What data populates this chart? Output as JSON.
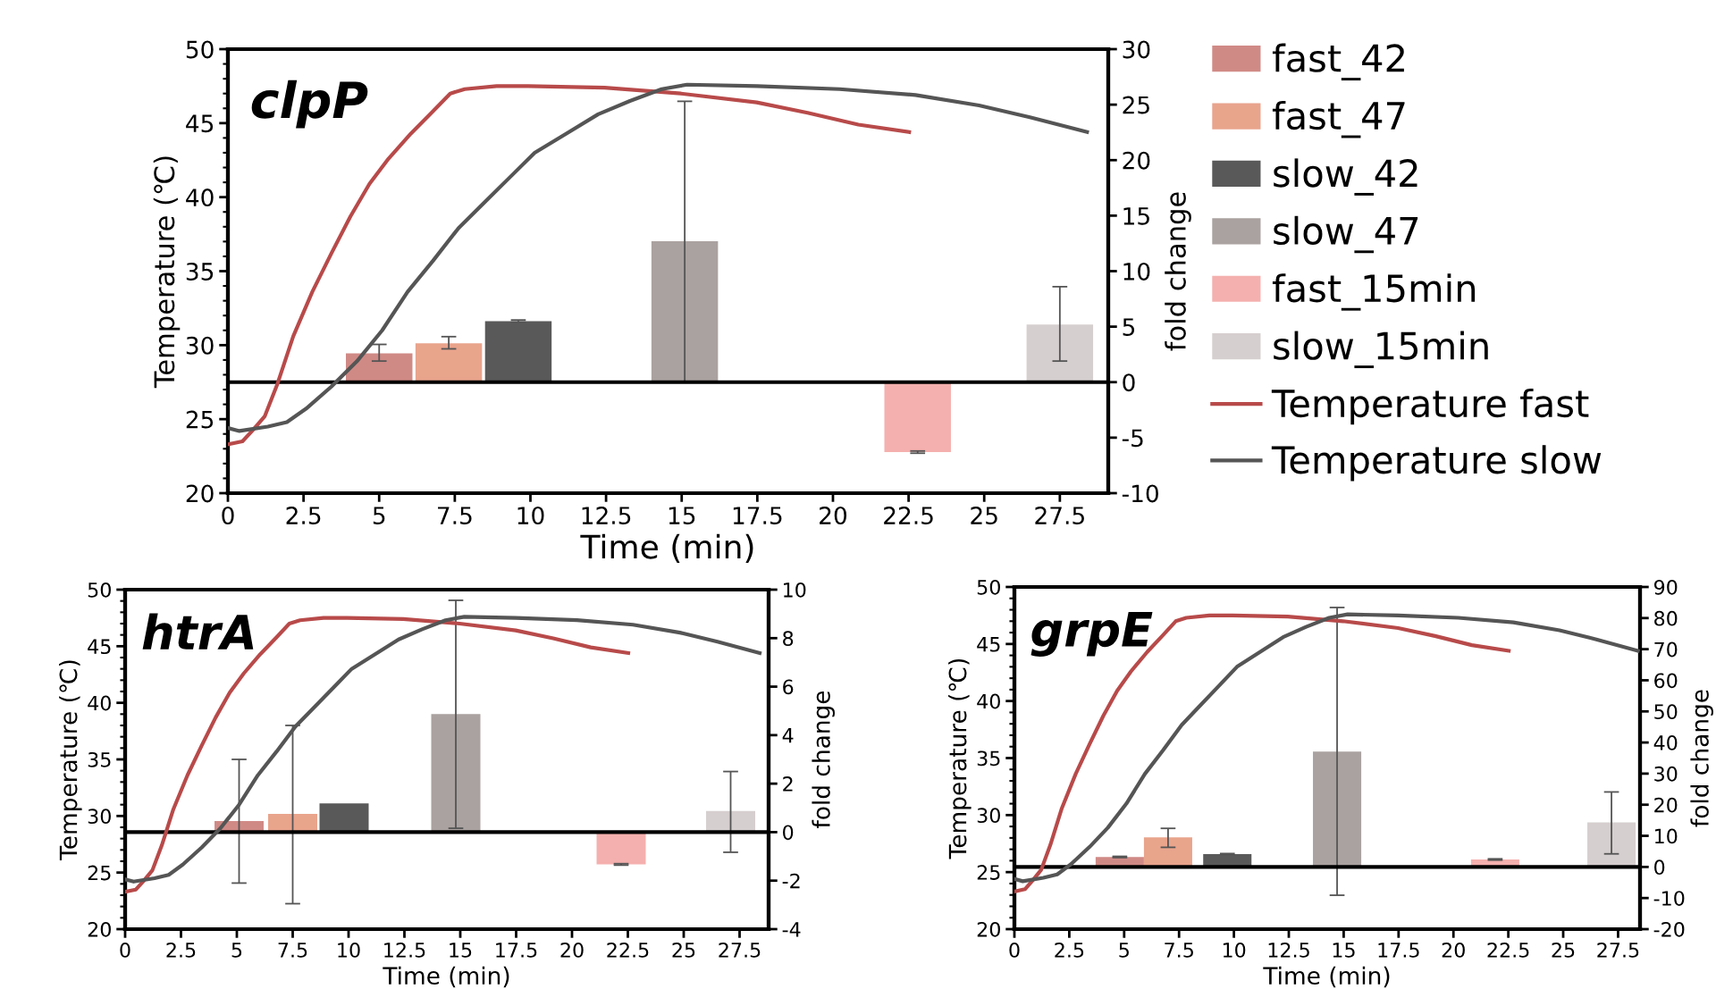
{
  "chart_data": [
    {
      "type": "line",
      "title": "clpP",
      "xlabel": "Time (min)",
      "ylabel": "Temperature (℃)",
      "y2label": "fold change",
      "xlim": [
        0,
        29.1
      ],
      "xticks": [
        0,
        2.5,
        5,
        7.5,
        10,
        12.5,
        15,
        17.5,
        20,
        22.5,
        25,
        27.5
      ],
      "ylim": [
        20,
        50
      ],
      "yticks": [
        20,
        25,
        30,
        35,
        40,
        45,
        50
      ],
      "y2lim": [
        -10,
        30
      ],
      "y2ticks": [
        -10,
        -5,
        0,
        5,
        10,
        15,
        20,
        25,
        30
      ],
      "legend": "right",
      "grid": false,
      "marker": "none",
      "line_style": "solid",
      "ref_lines": [
        {
          "axis": "y2",
          "value": 0,
          "color": "#000000"
        }
      ],
      "series": [
        {
          "type": "bar",
          "axis": "y2",
          "name": "fast_42",
          "color": "#d08a86",
          "x": [
            5.0
          ],
          "values": [
            2.6
          ],
          "errors": [
            [
              1.9,
              3.4
            ]
          ]
        },
        {
          "type": "bar",
          "axis": "y2",
          "name": "fast_47",
          "color": "#e9a48c",
          "x": [
            7.3
          ],
          "values": [
            3.5
          ],
          "errors": [
            [
              3.0,
              4.1
            ]
          ]
        },
        {
          "type": "bar",
          "axis": "y2",
          "name": "slow_42",
          "color": "#595959",
          "x": [
            9.6
          ],
          "values": [
            5.5
          ],
          "errors": [
            [
              5.4,
              5.6
            ]
          ]
        },
        {
          "type": "bar",
          "axis": "y2",
          "name": "slow_47",
          "color": "#aaa2a0",
          "x": [
            15.1
          ],
          "values": [
            12.7
          ],
          "errors": [
            [
              0.0,
              25.3
            ]
          ]
        },
        {
          "type": "bar",
          "axis": "y2",
          "name": "fast_15min",
          "color": "#f4b0ae",
          "x": [
            22.8
          ],
          "values": [
            -6.3
          ],
          "errors": [
            [
              -6.4,
              -6.2
            ]
          ]
        },
        {
          "type": "bar",
          "axis": "y2",
          "name": "slow_15min",
          "color": "#d6cfcf",
          "x": [
            27.5
          ],
          "values": [
            5.2
          ],
          "errors": [
            [
              1.9,
              8.6
            ]
          ]
        },
        {
          "name": "Temperature fast",
          "color": "#b84a4a",
          "x": [
            0,
            0.48,
            0.8,
            1.22,
            1.64,
            2.16,
            2.79,
            3.42,
            4.05,
            4.68,
            5.31,
            6.05,
            6.78,
            7.35,
            7.83,
            8.88,
            9.93,
            12.45,
            14.97,
            17.48,
            19.16,
            20.84,
            22.52
          ],
          "values": [
            23.3,
            23.5,
            24.2,
            25.2,
            27.4,
            30.6,
            33.6,
            36.2,
            38.7,
            40.9,
            42.6,
            44.3,
            45.8,
            47.0,
            47.3,
            47.5,
            47.5,
            47.4,
            47.0,
            46.4,
            45.7,
            44.9,
            44.4
          ]
        },
        {
          "name": "Temperature slow",
          "color": "#555555",
          "x": [
            0,
            0.38,
            1.32,
            1.95,
            2.58,
            3.42,
            4.26,
            5.1,
            5.94,
            6.78,
            7.62,
            8.46,
            9.3,
            10.14,
            11.19,
            12.24,
            13.29,
            14.34,
            15.18,
            17.49,
            20.22,
            22.73,
            24.83,
            26.51,
            28.4
          ],
          "values": [
            24.4,
            24.2,
            24.5,
            24.8,
            25.7,
            27.2,
            28.9,
            31.0,
            33.6,
            35.7,
            37.9,
            39.6,
            41.3,
            43.0,
            44.3,
            45.6,
            46.5,
            47.3,
            47.6,
            47.5,
            47.3,
            46.9,
            46.2,
            45.4,
            44.4
          ]
        }
      ]
    },
    {
      "type": "line",
      "title": "htrA",
      "xlabel": "Time (min)",
      "ylabel": "Temperature (℃)",
      "y2label": "fold change",
      "xlim": [
        0,
        28.8
      ],
      "xticks": [
        0,
        2.5,
        5,
        7.5,
        10,
        12.5,
        15,
        17.5,
        20,
        22.5,
        25,
        27.5
      ],
      "ylim": [
        20,
        50
      ],
      "yticks": [
        20,
        25,
        30,
        35,
        40,
        45,
        50
      ],
      "y2lim": [
        -4,
        10
      ],
      "y2ticks": [
        -4,
        -2,
        0,
        2,
        4,
        6,
        8,
        10
      ],
      "legend": false,
      "grid": false,
      "marker": "none",
      "line_style": "solid",
      "ref_lines": [
        {
          "axis": "y2",
          "value": 0,
          "color": "#000000"
        }
      ],
      "series": [
        {
          "type": "bar",
          "axis": "y2",
          "color": "#d08a86",
          "x": [
            5.1
          ],
          "values": [
            0.46
          ],
          "errors": [
            [
              -2.1,
              3.0
            ]
          ]
        },
        {
          "type": "bar",
          "axis": "y2",
          "color": "#e9a48c",
          "x": [
            7.5
          ],
          "values": [
            0.75
          ],
          "errors": [
            [
              -2.95,
              4.4
            ]
          ]
        },
        {
          "type": "bar",
          "axis": "y2",
          "color": "#595959",
          "x": [
            9.8
          ],
          "values": [
            1.19
          ],
          "errors": [
            null
          ]
        },
        {
          "type": "bar",
          "axis": "y2",
          "color": "#aaa2a0",
          "x": [
            14.8
          ],
          "values": [
            4.87
          ],
          "errors": [
            [
              0.16,
              9.56
            ]
          ]
        },
        {
          "type": "bar",
          "axis": "y2",
          "color": "#f4b0ae",
          "x": [
            22.2
          ],
          "values": [
            -1.33
          ],
          "errors": [
            [
              -1.36,
              -1.3
            ]
          ]
        },
        {
          "type": "bar",
          "axis": "y2",
          "color": "#d6cfcf",
          "x": [
            27.1
          ],
          "values": [
            0.87
          ],
          "errors": [
            [
              -0.83,
              2.5
            ]
          ]
        },
        {
          "color": "#b84a4a",
          "x": [
            0,
            0.48,
            0.8,
            1.22,
            1.64,
            2.16,
            2.79,
            3.42,
            4.05,
            4.68,
            5.31,
            6.05,
            6.78,
            7.35,
            7.83,
            8.88,
            9.93,
            12.45,
            14.97,
            17.48,
            19.16,
            20.84,
            22.52
          ],
          "values": [
            23.3,
            23.5,
            24.2,
            25.2,
            27.4,
            30.6,
            33.6,
            36.2,
            38.7,
            40.9,
            42.6,
            44.3,
            45.8,
            47.0,
            47.3,
            47.5,
            47.5,
            47.4,
            47.0,
            46.4,
            45.7,
            44.9,
            44.4
          ]
        },
        {
          "color": "#555555",
          "x": [
            0,
            0.38,
            1.32,
            1.95,
            2.58,
            3.42,
            4.26,
            5.1,
            5.94,
            6.78,
            7.62,
            8.46,
            9.3,
            10.14,
            11.19,
            12.24,
            13.29,
            14.34,
            15.18,
            17.49,
            20.22,
            22.73,
            24.83,
            26.51,
            28.4
          ],
          "values": [
            24.4,
            24.2,
            24.5,
            24.8,
            25.7,
            27.2,
            28.9,
            31.0,
            33.6,
            35.7,
            37.9,
            39.6,
            41.3,
            43.0,
            44.3,
            45.6,
            46.5,
            47.3,
            47.6,
            47.5,
            47.3,
            46.9,
            46.2,
            45.4,
            44.4
          ]
        }
      ]
    },
    {
      "type": "line",
      "title": "grpE",
      "xlabel": "Time (min)",
      "ylabel": "Temperature (℃)",
      "y2label": "fold change",
      "xlim": [
        0,
        28.5
      ],
      "xticks": [
        0,
        2.5,
        5,
        7.5,
        10,
        12.5,
        15,
        17.5,
        20,
        22.5,
        25,
        27.5
      ],
      "ylim": [
        20,
        50
      ],
      "yticks": [
        20,
        25,
        30,
        35,
        40,
        45,
        50
      ],
      "y2lim": [
        -20,
        90
      ],
      "y2ticks": [
        -20,
        -10,
        0,
        10,
        20,
        30,
        40,
        50,
        60,
        70,
        80,
        90
      ],
      "legend": false,
      "grid": false,
      "marker": "none",
      "line_style": "solid",
      "ref_lines": [
        {
          "axis": "y2",
          "value": 0,
          "color": "#000000"
        }
      ],
      "series": [
        {
          "type": "bar",
          "axis": "y2",
          "color": "#d08a86",
          "x": [
            4.8
          ],
          "values": [
            3.2
          ],
          "errors": [
            [
              3.0,
              3.4
            ]
          ]
        },
        {
          "type": "bar",
          "axis": "y2",
          "color": "#e9a48c",
          "x": [
            7.0
          ],
          "values": [
            9.5
          ],
          "errors": [
            [
              6.3,
              12.4
            ]
          ]
        },
        {
          "type": "bar",
          "axis": "y2",
          "color": "#595959",
          "x": [
            9.7
          ],
          "values": [
            4.1
          ],
          "errors": [
            [
              3.9,
              4.3
            ]
          ]
        },
        {
          "type": "bar",
          "axis": "y2",
          "color": "#aaa2a0",
          "x": [
            14.7
          ],
          "values": [
            37.1
          ],
          "errors": [
            [
              -9.1,
              83.4
            ]
          ]
        },
        {
          "type": "bar",
          "axis": "y2",
          "color": "#f4b0ae",
          "x": [
            21.9
          ],
          "values": [
            2.4
          ],
          "errors": [
            [
              2.2,
              2.6
            ]
          ]
        },
        {
          "type": "bar",
          "axis": "y2",
          "color": "#d6cfcf",
          "x": [
            27.2
          ],
          "values": [
            14.3
          ],
          "errors": [
            [
              4.2,
              24.1
            ]
          ]
        },
        {
          "color": "#b84a4a",
          "x": [
            0,
            0.48,
            0.8,
            1.22,
            1.64,
            2.16,
            2.79,
            3.42,
            4.05,
            4.68,
            5.31,
            6.05,
            6.78,
            7.35,
            7.83,
            8.88,
            9.93,
            12.45,
            14.97,
            17.48,
            19.16,
            20.84,
            22.52
          ],
          "values": [
            23.3,
            23.5,
            24.2,
            25.2,
            27.4,
            30.6,
            33.6,
            36.2,
            38.7,
            40.9,
            42.6,
            44.3,
            45.8,
            47.0,
            47.3,
            47.5,
            47.5,
            47.4,
            47.0,
            46.4,
            45.7,
            44.9,
            44.4
          ]
        },
        {
          "color": "#555555",
          "x": [
            0,
            0.38,
            1.32,
            1.95,
            2.58,
            3.42,
            4.26,
            5.1,
            5.94,
            6.78,
            7.62,
            8.46,
            9.3,
            10.14,
            11.19,
            12.24,
            13.29,
            14.34,
            15.18,
            17.49,
            20.22,
            22.73,
            24.83,
            26.51,
            28.4
          ],
          "values": [
            24.4,
            24.2,
            24.5,
            24.8,
            25.7,
            27.2,
            28.9,
            31.0,
            33.6,
            35.7,
            37.9,
            39.6,
            41.3,
            43.0,
            44.3,
            45.6,
            46.5,
            47.3,
            47.6,
            47.5,
            47.3,
            46.9,
            46.2,
            45.4,
            44.4
          ]
        }
      ]
    }
  ]
}
